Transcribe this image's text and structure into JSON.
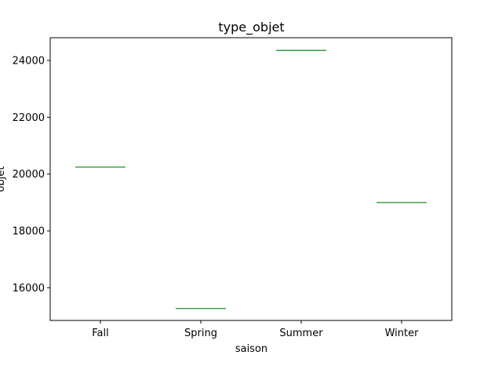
{
  "chart_data": {
    "type": "box",
    "title": "type_objet",
    "xlabel": "saison",
    "ylabel": "objet",
    "categories": [
      "Fall",
      "Spring",
      "Summer",
      "Winter"
    ],
    "values": [
      20250,
      15270,
      24350,
      19000
    ],
    "ylim": [
      14850,
      24800
    ],
    "yticks": [
      16000,
      18000,
      20000,
      22000,
      24000
    ],
    "ytick_labels": [
      "16000",
      "18000",
      "20000",
      "22000",
      "24000"
    ],
    "grid": false,
    "colors": {
      "box": "#1f77b4",
      "median": "#2ca02c"
    }
  }
}
